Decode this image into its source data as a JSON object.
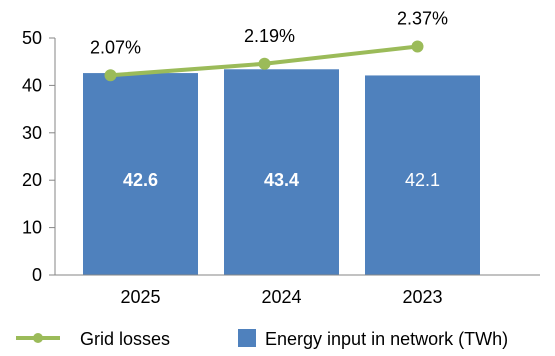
{
  "chart_data": {
    "type": "bar",
    "categories": [
      "2025",
      "2024",
      "2023"
    ],
    "ylim": [
      0,
      50
    ],
    "yticks": [
      0,
      10,
      20,
      30,
      40,
      50
    ],
    "grid": false,
    "legend_position": "bottom",
    "series": [
      {
        "name": "Energy input in network (TWh)",
        "type": "bar",
        "axis": "left",
        "values": [
          42.6,
          43.4,
          42.1
        ],
        "labels": [
          "42.6",
          "43.4",
          "42.1"
        ],
        "color": "#4f81bd"
      },
      {
        "name": "Grid losses",
        "type": "line",
        "axis": "right",
        "values": [
          2.07,
          2.19,
          2.37
        ],
        "labels": [
          "2.07%",
          "2.19%",
          "2.37%"
        ],
        "color": "#9bbb59"
      }
    ]
  }
}
